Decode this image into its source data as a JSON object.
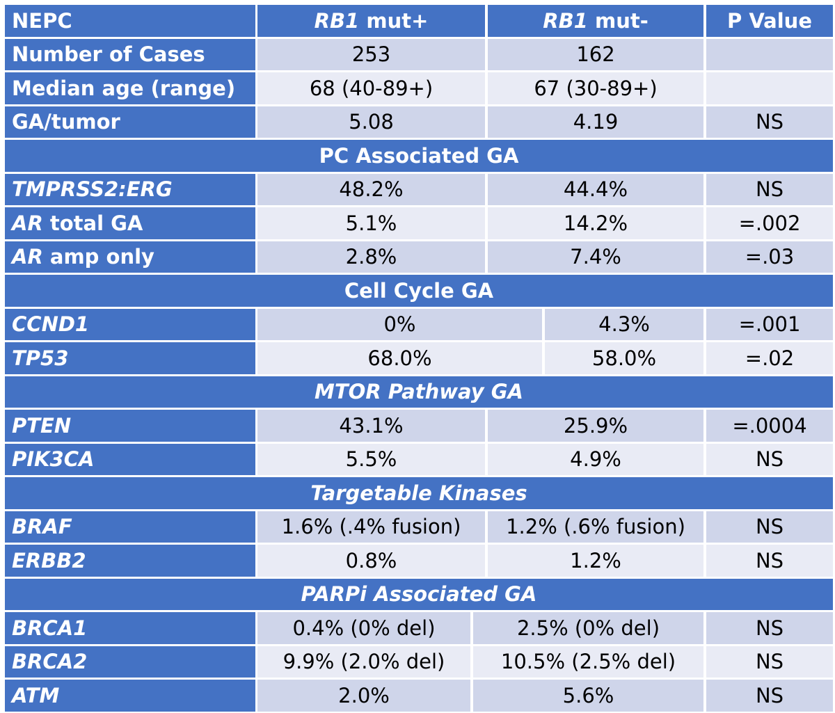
{
  "table": {
    "header": {
      "col0": "NEPC",
      "col1_gene": "RB1",
      "col1_rest": " mut+",
      "col2_gene": "RB1",
      "col2_rest": " mut-",
      "col3": "P Value"
    },
    "rows": {
      "cases": {
        "label": "Number of Cases",
        "v1": "253",
        "v2": "162",
        "p": ""
      },
      "age": {
        "label": "Median age (range)",
        "v1": "68 (40-89+)",
        "v2": "67 (30-89+)",
        "p": ""
      },
      "ga": {
        "label": "GA/tumor",
        "v1": "5.08",
        "v2": "4.19",
        "p": "NS"
      },
      "sec_pc": {
        "title": "PC Associated GA"
      },
      "tmprss": {
        "label": "TMPRSS2:ERG",
        "v1": "48.2%",
        "v2": "44.4%",
        "p": "NS"
      },
      "ar_total": {
        "label_gene": "AR",
        "label_rest": " total GA",
        "v1": "5.1%",
        "v2": "14.2%",
        "p": "=.002"
      },
      "ar_amp": {
        "label_gene": "AR",
        "label_rest": " amp only",
        "v1": "2.8%",
        "v2": "7.4%",
        "p": "=.03"
      },
      "sec_cc": {
        "title": "Cell Cycle GA"
      },
      "ccnd1": {
        "label": "CCND1",
        "v1": "0%",
        "v2": "4.3%",
        "p": "=.001"
      },
      "tp53": {
        "label": "TP53",
        "v1": "68.0%",
        "v2": "58.0%",
        "p": "=.02"
      },
      "sec_mtor": {
        "title": "MTOR Pathway GA"
      },
      "pten": {
        "label": "PTEN",
        "v1": "43.1%",
        "v2": "25.9%",
        "p": "=.0004"
      },
      "pik3ca": {
        "label": "PIK3CA",
        "v1": "5.5%",
        "v2": "4.9%",
        "p": "NS"
      },
      "sec_tk": {
        "title": "Targetable Kinases"
      },
      "braf": {
        "label": "BRAF",
        "v1": "1.6% (.4% fusion)",
        "v2": "1.2% (.6% fusion)",
        "p": "NS"
      },
      "erbb2": {
        "label": "ERBB2",
        "v1": "0.8%",
        "v2": "1.2%",
        "p": "NS"
      },
      "sec_parp": {
        "title": "PARPi Associated GA"
      },
      "brca1": {
        "label": "BRCA1",
        "v1": "0.4% (0% del)",
        "v2": "2.5% (0% del)",
        "p": "NS"
      },
      "brca2": {
        "label": "BRCA2",
        "v1": "9.9% (2.0% del)",
        "v2": "10.5% (2.5% del)",
        "p": "NS"
      },
      "atm": {
        "label": "ATM",
        "v1": "2.0%",
        "v2": "5.6%",
        "p": "NS"
      }
    }
  },
  "colors": {
    "header_blue": "#4472c4",
    "band_dark": "#cfd5ea",
    "band_light": "#e9ebf5"
  }
}
